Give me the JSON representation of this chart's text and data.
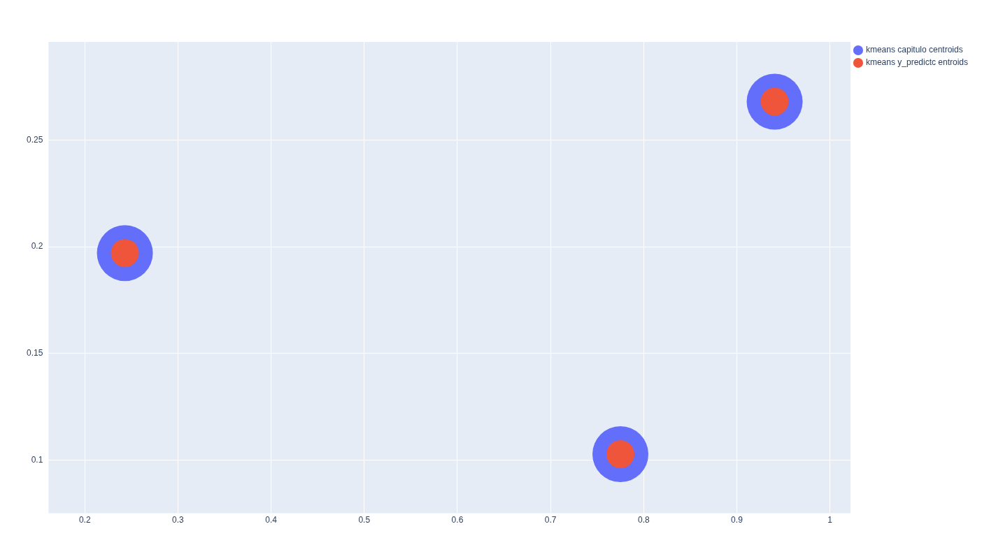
{
  "chart_data": {
    "type": "scatter",
    "xlim": [
      0.161,
      1.022
    ],
    "ylim": [
      0.075,
      0.296
    ],
    "xticks": [
      0.2,
      0.3,
      0.4,
      0.5,
      0.6,
      0.7,
      0.8,
      0.9,
      1
    ],
    "yticks": [
      0.1,
      0.15,
      0.2,
      0.25
    ],
    "grid": true,
    "legend": "top right",
    "marker": "circle",
    "series": [
      {
        "name": "kmeans capitulo centroids",
        "color": "#636efa",
        "x": [
          0.243,
          0.775,
          0.9406
        ],
        "values": [
          0.197,
          0.1027,
          0.268
        ]
      },
      {
        "name": "kmeans y_predictc entroids",
        "color": "#ef553b",
        "x": [
          0.243,
          0.775,
          0.9406
        ],
        "values": [
          0.197,
          0.1027,
          0.268
        ]
      }
    ]
  }
}
